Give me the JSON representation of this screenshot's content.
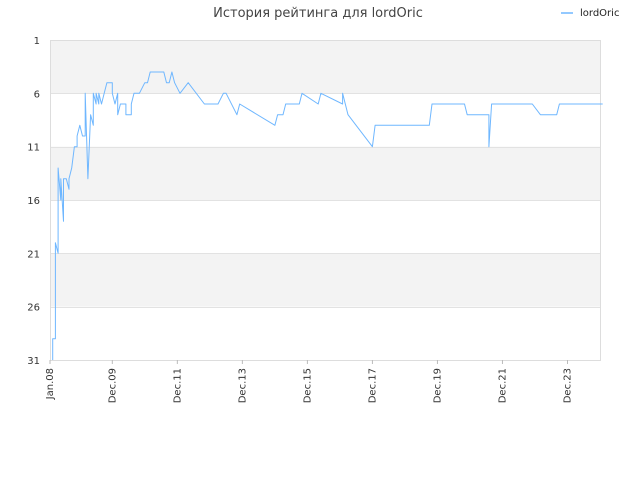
{
  "chart_data": {
    "type": "line",
    "title": "История рейтинга для lordOric",
    "xlabel": "",
    "ylabel": "",
    "y_axis_inverted": true,
    "ylim": [
      1,
      31
    ],
    "yticks": [
      1,
      6,
      11,
      16,
      21,
      26,
      31
    ],
    "xlim": [
      "2008-01",
      "2024-12"
    ],
    "xticks": [
      {
        "label": "Jan.08",
        "date": "2008-01"
      },
      {
        "label": "Dec.09",
        "date": "2009-12"
      },
      {
        "label": "Dec.11",
        "date": "2011-12"
      },
      {
        "label": "Dec.13",
        "date": "2013-12"
      },
      {
        "label": "Dec.15",
        "date": "2015-12"
      },
      {
        "label": "Dec.17",
        "date": "2017-12"
      },
      {
        "label": "Dec.19",
        "date": "2019-12"
      },
      {
        "label": "Dec.21",
        "date": "2021-12"
      },
      {
        "label": "Dec.23",
        "date": "2023-12"
      }
    ],
    "grid": "horizontal bands",
    "legend_position": "top-right",
    "series": [
      {
        "name": "lordOric",
        "color": "#6fb7ff",
        "points": [
          [
            "2008-02",
            31
          ],
          [
            "2008-02",
            29
          ],
          [
            "2008-03",
            29
          ],
          [
            "2008-03",
            20
          ],
          [
            "2008-04",
            21
          ],
          [
            "2008-04",
            13
          ],
          [
            "2008-05",
            16
          ],
          [
            "2008-05",
            14
          ],
          [
            "2008-06",
            18
          ],
          [
            "2008-06",
            14
          ],
          [
            "2008-07",
            14
          ],
          [
            "2008-08",
            15
          ],
          [
            "2008-08",
            14
          ],
          [
            "2008-09",
            13
          ],
          [
            "2008-10",
            11
          ],
          [
            "2008-11",
            11
          ],
          [
            "2008-11",
            10
          ],
          [
            "2008-12",
            9
          ],
          [
            "2009-01",
            10
          ],
          [
            "2009-02",
            10
          ],
          [
            "2009-02",
            6
          ],
          [
            "2009-03",
            14
          ],
          [
            "2009-04",
            8
          ],
          [
            "2009-05",
            9
          ],
          [
            "2009-05",
            6
          ],
          [
            "2009-06",
            7
          ],
          [
            "2009-06",
            6
          ],
          [
            "2009-07",
            7
          ],
          [
            "2009-07",
            6
          ],
          [
            "2009-08",
            7
          ],
          [
            "2009-09",
            6
          ],
          [
            "2009-10",
            5
          ],
          [
            "2009-12",
            5
          ],
          [
            "2009-12",
            6
          ],
          [
            "2010-01",
            7
          ],
          [
            "2010-02",
            6
          ],
          [
            "2010-02",
            8
          ],
          [
            "2010-03",
            7
          ],
          [
            "2010-05",
            7
          ],
          [
            "2010-05",
            8
          ],
          [
            "2010-07",
            8
          ],
          [
            "2010-07",
            7
          ],
          [
            "2010-08",
            6
          ],
          [
            "2010-10",
            6
          ],
          [
            "2010-12",
            5
          ],
          [
            "2011-01",
            5
          ],
          [
            "2011-02",
            4
          ],
          [
            "2011-07",
            4
          ],
          [
            "2011-08",
            5
          ],
          [
            "2011-09",
            5
          ],
          [
            "2011-10",
            4
          ],
          [
            "2011-11",
            5
          ],
          [
            "2012-01",
            6
          ],
          [
            "2012-04",
            5
          ],
          [
            "2012-10",
            7
          ],
          [
            "2013-03",
            7
          ],
          [
            "2013-05",
            6
          ],
          [
            "2013-06",
            6
          ],
          [
            "2013-10",
            8
          ],
          [
            "2013-11",
            7
          ],
          [
            "2014-12",
            9
          ],
          [
            "2015-01",
            8
          ],
          [
            "2015-03",
            8
          ],
          [
            "2015-04",
            7
          ],
          [
            "2015-09",
            7
          ],
          [
            "2015-10",
            6
          ],
          [
            "2016-04",
            7
          ],
          [
            "2016-05",
            6
          ],
          [
            "2017-01",
            7
          ],
          [
            "2017-01",
            6
          ],
          [
            "2017-02",
            7
          ],
          [
            "2017-03",
            8
          ],
          [
            "2017-12",
            11
          ],
          [
            "2018-01",
            9
          ],
          [
            "2019-09",
            9
          ],
          [
            "2019-10",
            7
          ],
          [
            "2020-10",
            7
          ],
          [
            "2020-11",
            8
          ],
          [
            "2021-07",
            8
          ],
          [
            "2021-07",
            11
          ],
          [
            "2021-08",
            7
          ],
          [
            "2022-11",
            7
          ],
          [
            "2023-02",
            8
          ],
          [
            "2023-08",
            8
          ],
          [
            "2023-09",
            7
          ],
          [
            "2025-01",
            7
          ]
        ]
      }
    ]
  }
}
